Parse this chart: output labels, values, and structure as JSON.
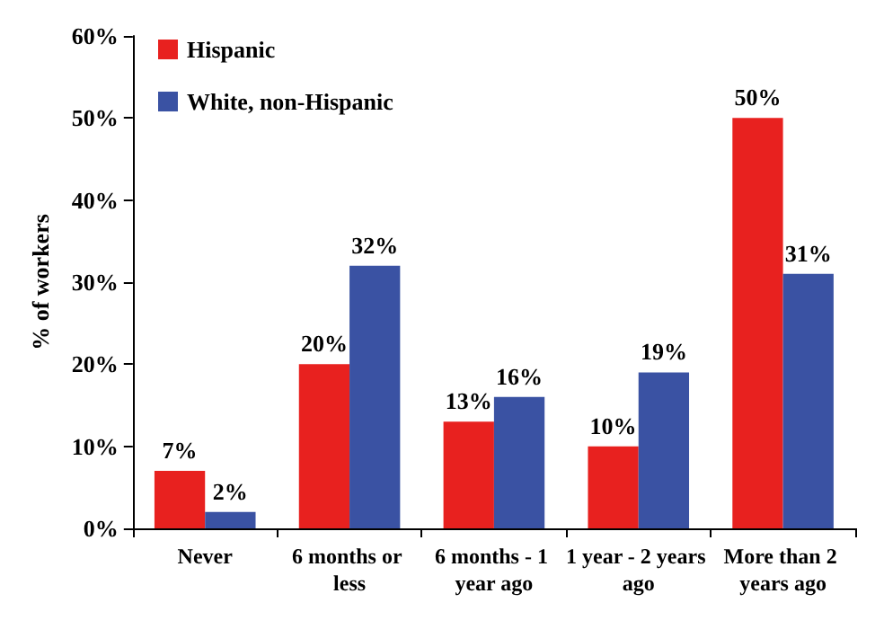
{
  "chart_data": {
    "type": "bar",
    "ylabel": "% of workers",
    "categories": [
      "Never",
      "6 months or less",
      "6 months - 1 year ago",
      "1 year - 2 years ago",
      "More than 2 years ago"
    ],
    "series": [
      {
        "name": "Hispanic",
        "color": "#e8211f",
        "values": [
          7,
          20,
          13,
          10,
          50
        ],
        "value_labels": [
          "7%",
          "20%",
          "13%",
          "10%",
          "50%"
        ]
      },
      {
        "name": "White, non-Hispanic",
        "color": "#3a52a3",
        "values": [
          2,
          32,
          16,
          19,
          31
        ],
        "value_labels": [
          "2%",
          "32%",
          "16%",
          "19%",
          "31%"
        ]
      }
    ],
    "ylim": [
      0,
      60
    ],
    "yticks": [
      {
        "value": 0,
        "label": "0%"
      },
      {
        "value": 10,
        "label": "10%"
      },
      {
        "value": 20,
        "label": "20%"
      },
      {
        "value": 30,
        "label": "30%"
      },
      {
        "value": 40,
        "label": "40%"
      },
      {
        "value": 50,
        "label": "50%"
      },
      {
        "value": 60,
        "label": "60%"
      }
    ],
    "grid": false,
    "legend": "top left"
  }
}
